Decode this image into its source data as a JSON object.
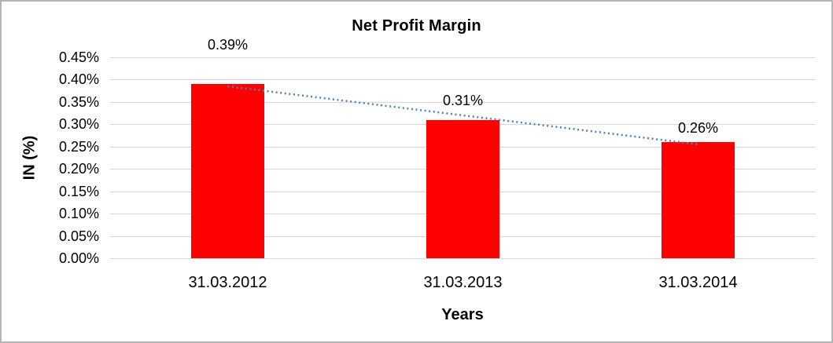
{
  "chart_data": {
    "type": "bar",
    "title": "Net Profit Margin",
    "xlabel": "Years",
    "ylabel": "IN (%)",
    "categories": [
      "31.03.2012",
      "31.03.2013",
      "31.03.2014"
    ],
    "values": [
      0.39,
      0.31,
      0.26
    ],
    "value_labels": [
      "0.39%",
      "0.31%",
      "0.26%"
    ],
    "ylim": [
      0,
      0.45
    ],
    "y_tick_values": [
      0.45,
      0.4,
      0.35,
      0.3,
      0.25,
      0.2,
      0.15,
      0.1,
      0.05,
      0.0
    ],
    "y_tick_labels": [
      "0.45%",
      "0.40%",
      "0.35%",
      "0.30%",
      "0.25%",
      "0.20%",
      "0.15%",
      "0.10%",
      "0.05%",
      "0.00%"
    ],
    "grid": true,
    "legend": false,
    "trendline": {
      "type": "linear",
      "style": "dotted"
    },
    "colors": {
      "bar": "#FF0000",
      "trendline": "#4F81BD",
      "gridline": "#D6D6D6",
      "text": "#000000"
    }
  }
}
